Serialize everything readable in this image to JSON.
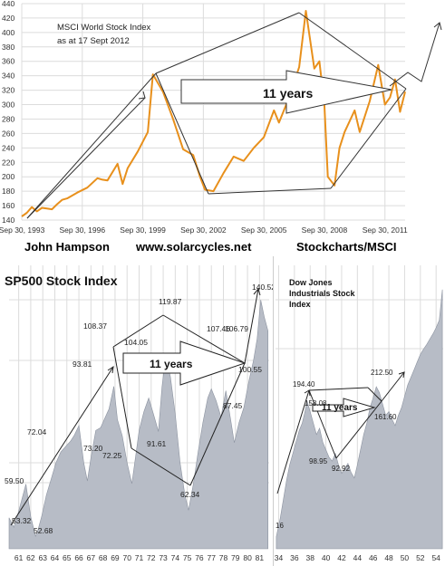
{
  "chart_data": [
    {
      "type": "line",
      "title": "MSCI World Stock Index",
      "subtitle": "as at 17 Sept 2012",
      "x_ticks": [
        "Sep 30, 1993",
        "Sep 30, 1996",
        "Sep 30, 1999",
        "Sep 30, 2002",
        "Sep 30, 2005",
        "Sep 30, 2008",
        "Sep 30, 2011"
      ],
      "y_ticks": [
        140,
        160,
        180,
        200,
        220,
        240,
        260,
        280,
        300,
        320,
        340,
        360,
        380,
        400,
        420,
        440
      ],
      "ylim": [
        140,
        440
      ],
      "grid": true,
      "series": [
        {
          "x": [
            "1993-09",
            "1993-12",
            "1994-03",
            "1994-06",
            "1994-09",
            "1994-12",
            "1995-03",
            "1995-06",
            "1995-09",
            "1995-12",
            "1996-06",
            "1996-12",
            "1997-06",
            "1997-09",
            "1997-12",
            "1998-06",
            "1998-09",
            "1998-12",
            "1999-06",
            "1999-12",
            "2000-03",
            "2000-09",
            "2001-03",
            "2001-09",
            "2002-03",
            "2002-07",
            "2002-10",
            "2003-03",
            "2003-09",
            "2004-03",
            "2004-09",
            "2005-03",
            "2005-09",
            "2006-03",
            "2006-06",
            "2006-12",
            "2007-06",
            "2007-10",
            "2008-03",
            "2008-06",
            "2008-09",
            "2008-11",
            "2009-03",
            "2009-06",
            "2009-09",
            "2010-03",
            "2010-06",
            "2010-12",
            "2011-05",
            "2011-09",
            "2011-12",
            "2012-03",
            "2012-06",
            "2012-09"
          ],
          "values": [
            145,
            150,
            158,
            152,
            157,
            156,
            155,
            162,
            168,
            170,
            178,
            185,
            198,
            196,
            195,
            218,
            190,
            212,
            235,
            262,
            342,
            318,
            280,
            238,
            230,
            200,
            182,
            180,
            205,
            228,
            222,
            240,
            255,
            292,
            275,
            310,
            352,
            430,
            350,
            360,
            300,
            200,
            188,
            240,
            262,
            292,
            262,
            305,
            355,
            300,
            310,
            335,
            290,
            318
          ]
        }
      ],
      "annotations": [
        "11 years"
      ]
    },
    {
      "type": "area",
      "title": "SP500 Stock Index",
      "x_ticks": [
        "61",
        "62",
        "63",
        "64",
        "65",
        "66",
        "67",
        "68",
        "69",
        "70",
        "71",
        "72",
        "73",
        "74",
        "75",
        "76",
        "77",
        "78",
        "79",
        "80",
        "81"
      ],
      "labels": [
        "59.50",
        "53.32",
        "52.68",
        "72.04",
        "73.20",
        "93.81",
        "108.37",
        "72.25",
        "104.05",
        "91.61",
        "119.87",
        "62.34",
        "107.46",
        "106.79",
        "87.45",
        "100.55",
        "140.52"
      ],
      "grid": true,
      "series": [
        {
          "x": [
            60.2,
            60.6,
            61.0,
            61.3,
            61.6,
            62.0,
            62.4,
            62.6,
            62.9,
            63.3,
            63.7,
            64.1,
            64.5,
            64.9,
            65.3,
            65.6,
            66.0,
            66.4,
            66.7,
            67.0,
            67.4,
            67.8,
            68.2,
            68.5,
            68.9,
            69.2,
            69.6,
            70.0,
            70.4,
            70.7,
            71.0,
            71.4,
            71.8,
            72.2,
            72.6,
            72.9,
            73.2,
            73.6,
            74.0,
            74.4,
            74.8,
            75.1,
            75.5,
            75.9,
            76.3,
            76.7,
            77.0,
            77.4,
            77.8,
            78.2,
            78.6,
            78.9,
            79.3,
            79.7,
            80.1,
            80.5,
            80.8,
            81.1,
            81.4,
            81.7
          ],
          "values": [
            59.5,
            56,
            62,
            67,
            72.04,
            60,
            52.68,
            55,
            60,
            68,
            74,
            80,
            84,
            86,
            88,
            90,
            93.81,
            80,
            73.2,
            82,
            92,
            93,
            97,
            100,
            108.37,
            96,
            90,
            80,
            72.25,
            82,
            92,
            99,
            104.05,
            98,
            91.61,
            108,
            119.87,
            112,
            98,
            80,
            68,
            62.34,
            72,
            84,
            95,
            104,
            107.46,
            103,
            97,
            106.79,
            96,
            87.45,
            95,
            100.55,
            110,
            118,
            126,
            140.52,
            134,
            129
          ]
        }
      ],
      "annotations": [
        "11 years"
      ]
    },
    {
      "type": "area",
      "title": "Dow Jones Industrials Stock Index",
      "x_ticks": [
        "34",
        "36",
        "38",
        "40",
        "42",
        "44",
        "46",
        "48",
        "50",
        "52",
        "54"
      ],
      "labels": [
        "16",
        "194.40",
        "158.08",
        "98.95",
        "92.92",
        "212.50",
        "161.60"
      ],
      "grid": true,
      "series": [
        {
          "x": [
            33.7,
            34.2,
            34.6,
            35.0,
            35.4,
            35.8,
            36.2,
            36.6,
            37.0,
            37.3,
            37.6,
            38.0,
            38.4,
            38.8,
            39.2,
            39.6,
            40.0,
            40.4,
            40.8,
            41.2,
            41.6,
            42.0,
            42.4,
            42.8,
            43.2,
            43.6,
            44.0,
            44.4,
            44.8,
            45.2,
            45.6,
            46.0,
            46.4,
            46.8,
            47.2,
            47.6,
            48.0,
            48.4,
            48.8,
            49.2,
            49.6,
            50.0,
            50.4,
            50.8,
            51.2,
            51.6,
            52.0,
            52.4,
            52.8,
            53.2,
            53.6,
            54.0,
            54.4,
            54.8
          ],
          "values": [
            16,
            40,
            65,
            90,
            110,
            125,
            140,
            155,
            165,
            178,
            194.4,
            180,
            165,
            150,
            158.08,
            140,
            130,
            120,
            115,
            125,
            110,
            98.95,
            105,
            112,
            100,
            92.92,
            110,
            130,
            150,
            165,
            185,
            198,
            212.5,
            205,
            190,
            175,
            180,
            170,
            161.6,
            175,
            185,
            200,
            215,
            225,
            235,
            245,
            255,
            262,
            268,
            275,
            282,
            290,
            300,
            340
          ]
        }
      ],
      "annotations": [
        "11 years"
      ]
    }
  ],
  "credits": {
    "author": "John Hampson",
    "site": "www.solarcycles.net",
    "source": "Stockcharts/MSCI"
  },
  "colors": {
    "msci_line": "#e8901c",
    "sp_area": "#b7bcc6",
    "sp_area_stroke": "#8c93a0",
    "annotation": "#222222",
    "grid": "#dcdcdc"
  }
}
